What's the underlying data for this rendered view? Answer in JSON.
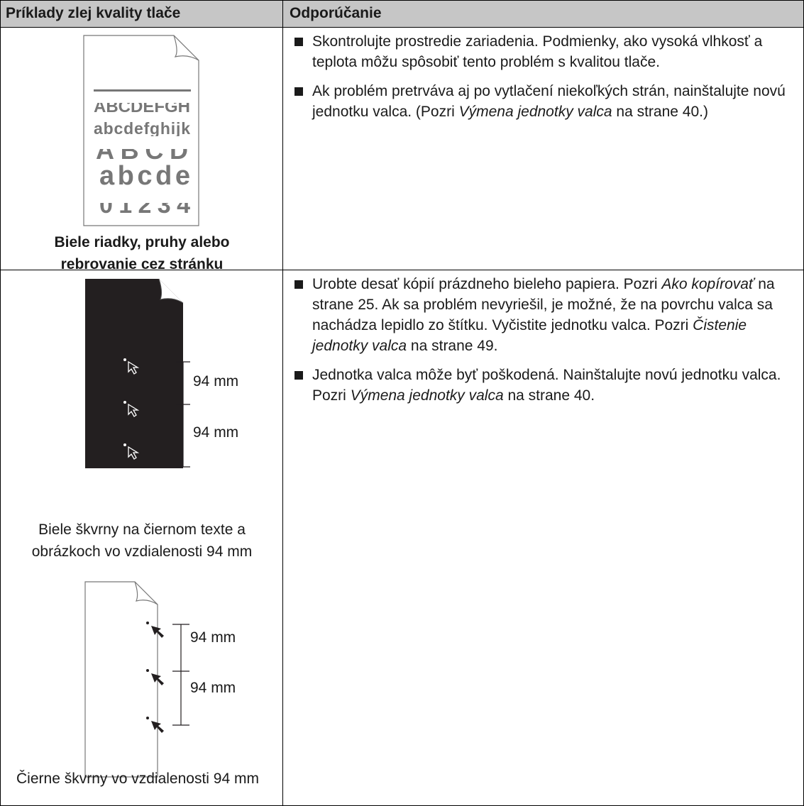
{
  "table": {
    "headers": [
      "Príklady zlej kvality tlače",
      "Odporúčanie"
    ],
    "rows": [
      {
        "examples": [
          {
            "illustration_text": [
              "ABCDEFGH",
              "abcdefghijk",
              "ABCD",
              "abcde",
              "01234"
            ],
            "caption": "Biele riadky, pruhy alebo rebrovanie cez stránku"
          }
        ],
        "recommendations": [
          [
            {
              "text": "Skontrolujte prostredie zariadenia. Podmienky, ako vysoká vlhkosť a teplota môžu spôsobiť tento problém s kvalitou tlače."
            }
          ],
          [
            {
              "text": "Ak problém pretrváva aj po vytlačení niekoľkých strán, nainštalujte novú jednotku valca. (Pozri "
            },
            {
              "text": "Výmena jednotky valca",
              "italic": true
            },
            {
              "text": " na strane 40.)"
            }
          ]
        ]
      },
      {
        "examples": [
          {
            "dimensions": [
              "94 mm",
              "94 mm"
            ],
            "caption": "Biele škvrny na čiernom texte a obrázkoch vo vzdialenosti 94 mm"
          },
          {
            "dimensions": [
              "94 mm",
              "94 mm"
            ],
            "caption": "Čierne škvrny vo vzdialenosti 94 mm"
          }
        ],
        "recommendations": [
          [
            {
              "text": "Urobte desať kópií prázdneho bieleho papiera. Pozri "
            },
            {
              "text": "Ako kopírovať",
              "italic": true
            },
            {
              "text": " na strane 25. Ak sa problém nevyriešil, je možné, že na povrchu valca sa nachádza lepidlo zo štítku. Vyčistite jednotku valca. Pozri "
            },
            {
              "text": "Čistenie jednotky valca",
              "italic": true
            },
            {
              "text": " na strane 49."
            }
          ],
          [
            {
              "text": "Jednotka valca môže byť poškodená. Nainštalujte novú jednotku valca. Pozri "
            },
            {
              "text": "Výmena jednotky valca",
              "italic": true
            },
            {
              "text": " na strane 40."
            }
          ]
        ]
      }
    ]
  }
}
